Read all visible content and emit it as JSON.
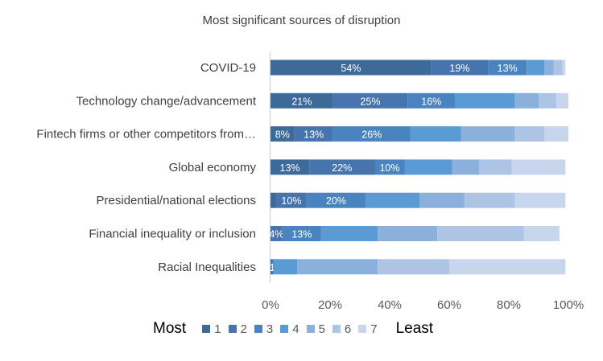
{
  "chart_data": {
    "type": "bar",
    "orientation": "horizontal",
    "stacked": true,
    "title": "Most significant sources of disruption",
    "categories": [
      "COVID-19",
      "Technology change/advancement",
      "Fintech firms or other competitors from…",
      "Global economy",
      "Presidential/national elections",
      "Financial inequality or inclusion",
      "Racial Inequalities"
    ],
    "series": [
      {
        "name": "1",
        "color": "#3e6a9a",
        "values": [
          54,
          21,
          8,
          13,
          2,
          0,
          0
        ]
      },
      {
        "name": "2",
        "color": "#4575ac",
        "values": [
          19,
          25,
          13,
          22,
          10,
          4,
          1
        ]
      },
      {
        "name": "3",
        "color": "#4a84c0",
        "values": [
          13,
          16,
          26,
          10,
          20,
          13,
          0
        ]
      },
      {
        "name": "4",
        "color": "#5b9bd5",
        "values": [
          6,
          20,
          17,
          16,
          18,
          19,
          8
        ]
      },
      {
        "name": "5",
        "color": "#8cb0dc",
        "values": [
          3,
          8,
          18,
          9,
          15,
          20,
          27
        ]
      },
      {
        "name": "6",
        "color": "#adc4e4",
        "values": [
          3,
          6,
          10,
          11,
          17,
          29,
          24
        ]
      },
      {
        "name": "7",
        "color": "#c7d6ec",
        "values": [
          1,
          4,
          8,
          18,
          17,
          12,
          39
        ]
      }
    ],
    "data_labels": [
      [
        "54%",
        "19%",
        "13%",
        null,
        null,
        null,
        null
      ],
      [
        "21%",
        "25%",
        "16%",
        null,
        null,
        null,
        null
      ],
      [
        "8%",
        "13%",
        "26%",
        null,
        null,
        null,
        null
      ],
      [
        "13%",
        "22%",
        "10%",
        null,
        null,
        null,
        null
      ],
      [
        null,
        "10%",
        "20%",
        null,
        null,
        null,
        null
      ],
      [
        null,
        "4%",
        "13%",
        null,
        null,
        null,
        null
      ],
      [
        null,
        "1%",
        null,
        null,
        null,
        null,
        null
      ]
    ],
    "xlim": [
      0,
      100
    ],
    "xticks": [
      "0%",
      "20%",
      "40%",
      "60%",
      "80%",
      "100%"
    ],
    "grid": false,
    "legend_position": "bottom",
    "legend_left": "Most",
    "legend_right": "Least"
  }
}
